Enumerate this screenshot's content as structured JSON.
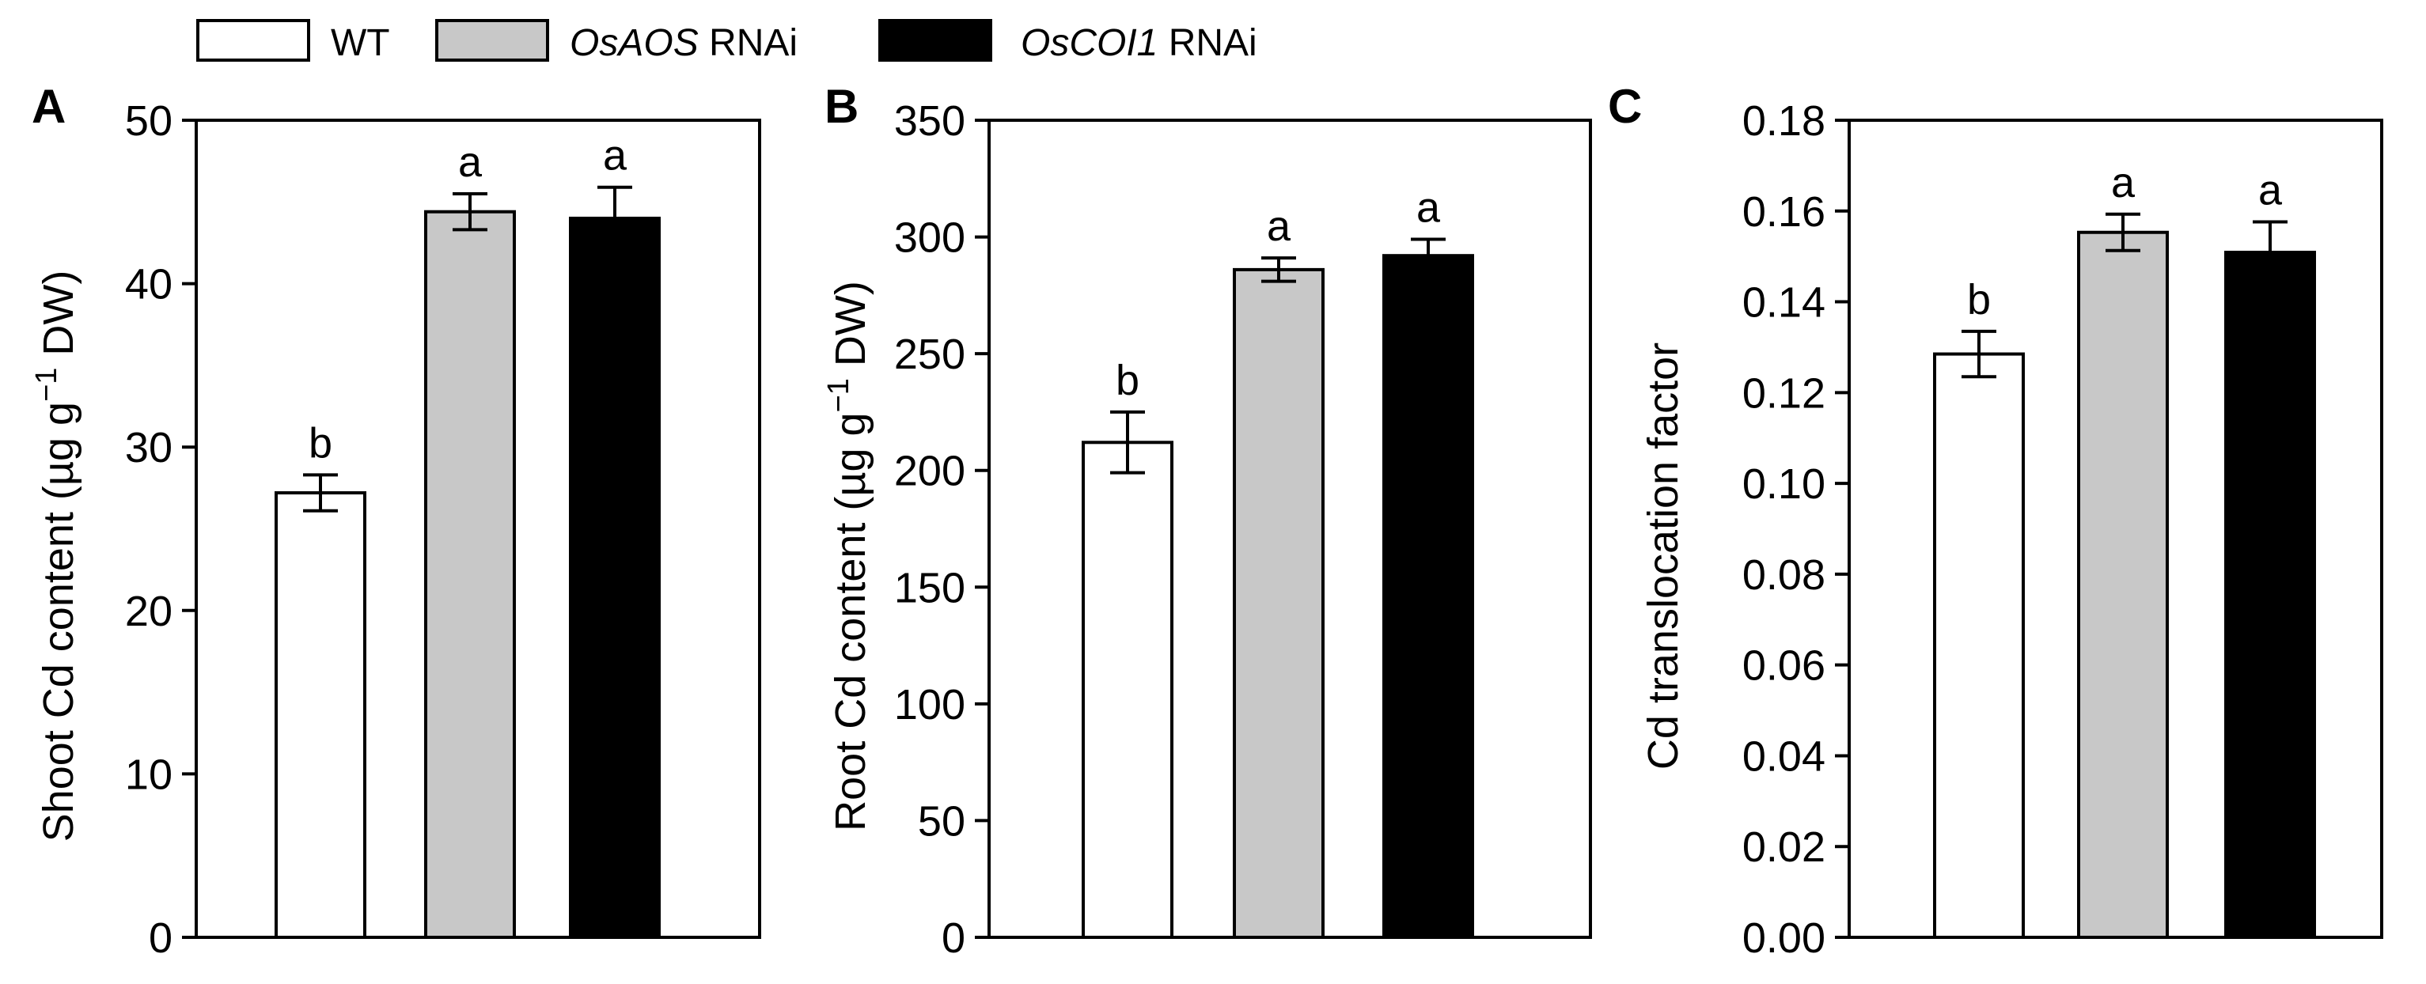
{
  "legend": {
    "entries": [
      {
        "label_italic": "",
        "label": "WT",
        "fill": "#ffffff"
      },
      {
        "label_italic": "OsAOS",
        "label": " RNAi",
        "fill": "#c8c8c8"
      },
      {
        "label_italic": "OsCOI1",
        "label": " RNAi",
        "fill": "#000000"
      }
    ]
  },
  "chart_data": [
    {
      "panel": "A",
      "type": "bar",
      "title": "",
      "categories": [
        "WT",
        "OsAOS RNAi",
        "OsCOI1 RNAi"
      ],
      "values": [
        27.2,
        44.4,
        44.0
      ],
      "errors": [
        1.1,
        1.1,
        1.9
      ],
      "significance": [
        "b",
        "a",
        "a"
      ],
      "colors": [
        "#ffffff",
        "#c8c8c8",
        "#000000"
      ],
      "ylabel_pre": "Shoot Cd content (µg g",
      "ylabel_sup": "−1",
      "ylabel_post": " DW)",
      "ylim": [
        0,
        50
      ],
      "yticks": [
        0,
        10,
        20,
        30,
        40,
        50
      ],
      "ytick_labels": [
        "0",
        "10",
        "20",
        "30",
        "40",
        "50"
      ],
      "xlabel": "",
      "grid": false
    },
    {
      "panel": "B",
      "type": "bar",
      "title": "",
      "categories": [
        "WT",
        "OsAOS RNAi",
        "OsCOI1 RNAi"
      ],
      "values": [
        212,
        286,
        292
      ],
      "errors": [
        13,
        5,
        7
      ],
      "significance": [
        "b",
        "a",
        "a"
      ],
      "colors": [
        "#ffffff",
        "#c8c8c8",
        "#000000"
      ],
      "ylabel_pre": "Root Cd content (µg g",
      "ylabel_sup": "−1",
      "ylabel_post": " DW)",
      "ylim": [
        0,
        350
      ],
      "yticks": [
        0,
        50,
        100,
        150,
        200,
        250,
        300,
        350
      ],
      "ytick_labels": [
        "0",
        "50",
        "100",
        "150",
        "200",
        "250",
        "300",
        "350"
      ],
      "xlabel": "",
      "grid": false
    },
    {
      "panel": "C",
      "type": "bar",
      "title": "",
      "categories": [
        "WT",
        "OsAOS RNAi",
        "OsCOI1 RNAi"
      ],
      "values": [
        0.1285,
        0.1553,
        0.1509
      ],
      "errors": [
        0.005,
        0.004,
        0.0067
      ],
      "significance": [
        "b",
        "a",
        "a"
      ],
      "colors": [
        "#ffffff",
        "#c8c8c8",
        "#000000"
      ],
      "ylabel_pre": "Cd translocation factor",
      "ylabel_sup": "",
      "ylabel_post": "",
      "ylim": [
        0,
        0.18
      ],
      "yticks": [
        0,
        0.02,
        0.04,
        0.06,
        0.08,
        0.1,
        0.12,
        0.14,
        0.16,
        0.18
      ],
      "ytick_labels": [
        "0.00",
        "0.02",
        "0.04",
        "0.06",
        "0.08",
        "0.10",
        "0.12",
        "0.14",
        "0.16",
        "0.18"
      ],
      "xlabel": "",
      "grid": false
    }
  ]
}
